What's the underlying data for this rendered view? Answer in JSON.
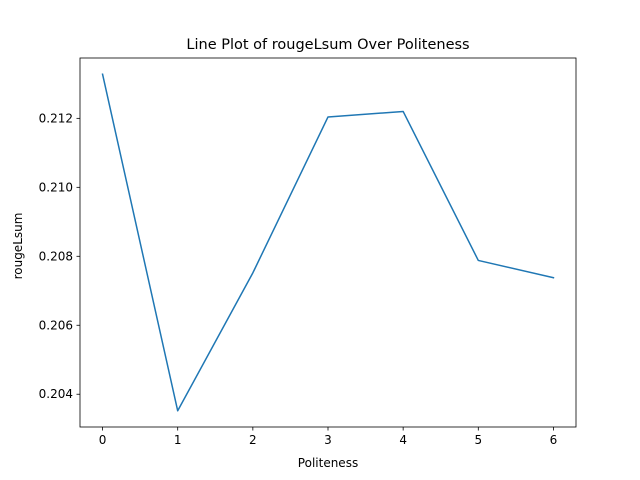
{
  "chart_data": {
    "type": "line",
    "title": "Line Plot of rougeLsum Over Politeness",
    "xlabel": "Politeness",
    "ylabel": "rougeLsum",
    "x": [
      0,
      1,
      2,
      3,
      4,
      5,
      6
    ],
    "series": [
      {
        "values": [
          0.21328,
          0.20352,
          0.20752,
          0.21204,
          0.2122,
          0.20788,
          0.20738
        ],
        "color": "#1f77b4"
      }
    ],
    "xlim": [
      -0.3,
      6.3
    ],
    "ylim": [
      0.20305,
      0.21375
    ],
    "xticks": [
      0,
      1,
      2,
      3,
      4,
      5,
      6
    ],
    "xtick_labels": [
      "0",
      "1",
      "2",
      "3",
      "4",
      "5",
      "6"
    ],
    "yticks": [
      0.204,
      0.206,
      0.208,
      0.21,
      0.212
    ],
    "ytick_labels": [
      "0.204",
      "0.206",
      "0.208",
      "0.210",
      "0.212"
    ],
    "grid": false,
    "legend": false
  }
}
